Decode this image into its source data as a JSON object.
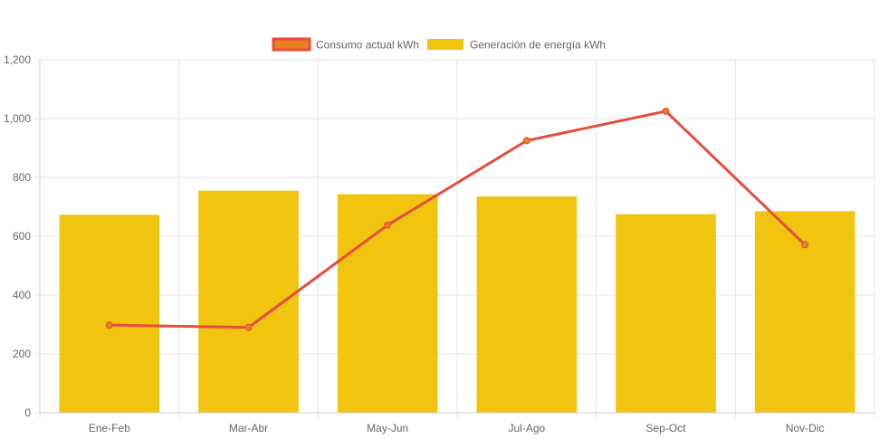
{
  "chart_data": {
    "type": "bar",
    "categories": [
      "Ene-Feb",
      "Mar-Abr",
      "May-Jun",
      "Jul-Ago",
      "Sep-Oct",
      "Nov-Dic"
    ],
    "series": [
      {
        "name": "Consumo actual kWh",
        "type": "line",
        "color": "#e74c3c",
        "fill_color": "#e67e22",
        "values": [
          298,
          290,
          638,
          925,
          1025,
          571
        ]
      },
      {
        "name": "Generación de energía kWh",
        "type": "bar",
        "color": "#f1c40f",
        "values": [
          673,
          755,
          743,
          735,
          675,
          685
        ]
      }
    ],
    "ylim": [
      0,
      1200
    ],
    "yticks": [
      0,
      200,
      400,
      600,
      800,
      1000,
      1200
    ],
    "ytick_labels": [
      "0",
      "200",
      "400",
      "600",
      "800",
      "1,000",
      "1,200"
    ],
    "grid": true,
    "legend_position": "top"
  }
}
